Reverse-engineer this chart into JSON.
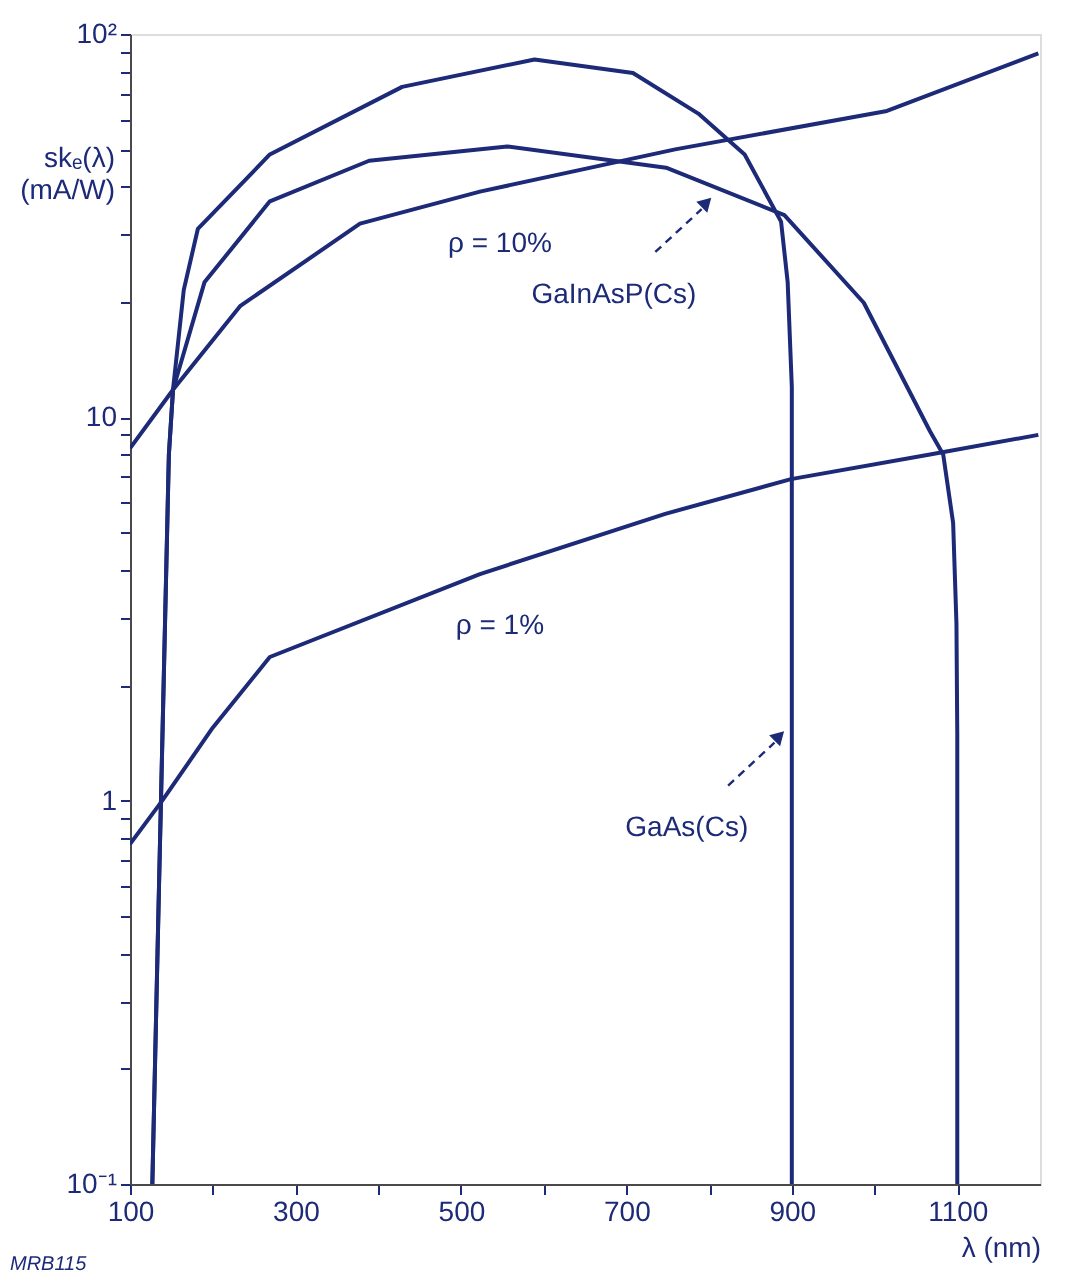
{
  "chart_data": {
    "type": "line",
    "xlabel": "λ   (nm)",
    "ylabel": "skₑ(λ)\n(mA/W)",
    "log": "y",
    "grid": false,
    "marker": "none",
    "line_style": "solid",
    "xlim": [
      100,
      1200
    ],
    "ylim": [
      0.1,
      100
    ],
    "xticks": [
      100,
      {
        "value": 200,
        "label": null
      },
      300,
      {
        "value": 400,
        "label": null
      },
      500,
      {
        "value": 600,
        "label": null
      },
      700,
      {
        "value": 800,
        "label": null
      },
      900,
      {
        "value": 1000,
        "label": null
      },
      1100
    ],
    "yticks": [
      {
        "value": 0.1,
        "label": "10⁻¹"
      },
      {
        "value": 0.2,
        "label": null
      },
      {
        "value": 0.3,
        "label": null
      },
      {
        "value": 0.4,
        "label": null
      },
      {
        "value": 0.5,
        "label": null
      },
      {
        "value": 0.6,
        "label": null
      },
      {
        "value": 0.7,
        "label": null
      },
      {
        "value": 0.8,
        "label": null
      },
      {
        "value": 0.9,
        "label": null
      },
      1,
      {
        "value": 2,
        "label": null
      },
      {
        "value": 3,
        "label": null
      },
      {
        "value": 4,
        "label": null
      },
      {
        "value": 5,
        "label": null
      },
      {
        "value": 6,
        "label": null
      },
      {
        "value": 7,
        "label": null
      },
      {
        "value": 8,
        "label": null
      },
      {
        "value": 9,
        "label": null
      },
      10,
      {
        "value": 20,
        "label": null
      },
      {
        "value": 30,
        "label": null
      },
      {
        "value": 40,
        "label": null
      },
      {
        "value": 50,
        "label": null
      },
      {
        "value": 60,
        "label": null
      },
      {
        "value": 70,
        "label": null
      },
      {
        "value": 80,
        "label": null
      },
      {
        "value": 90,
        "label": null
      },
      {
        "value": 100,
        "label": "10²"
      }
    ],
    "series": [
      {
        "name": "ρ  = 10%",
        "color": "#1c2a78",
        "x": [
          100,
          152,
          233,
          378,
          523,
          759,
          1015,
          1198
        ],
        "values": [
          8.3,
          11.8,
          19.5,
          32,
          38.8,
          50,
          63,
          89
        ]
      },
      {
        "name": "ρ  = 1%",
        "color": "#1c2a78",
        "x": [
          100,
          139,
          200,
          269,
          523,
          747,
          899,
          1067,
          1198
        ],
        "values": [
          0.77,
          1.0,
          1.55,
          2.37,
          3.9,
          5.6,
          6.9,
          8.0,
          9.0
        ]
      },
      {
        "color": "#1c2a78",
        "x": [
          127,
          135,
          147,
          152,
          165,
          182,
          269,
          429,
          589,
          708,
          787,
          843,
          887,
          895,
          900,
          900
        ],
        "values": [
          0.1,
          0.59,
          8,
          11.8,
          21.5,
          31,
          48.5,
          72.8,
          85.8,
          79.1,
          62,
          48.5,
          32.4,
          22.5,
          12,
          0.1
        ]
      },
      {
        "color": "#1c2a78",
        "x": [
          127,
          135,
          147,
          152,
          190,
          269,
          389,
          556,
          748,
          891,
          987,
          1067,
          1083,
          1095,
          1099,
          1100,
          1100
        ],
        "values": [
          0.1,
          0.59,
          8,
          11.8,
          22.5,
          36.6,
          46.7,
          50.9,
          44.8,
          33.7,
          19.9,
          9.2,
          8.0,
          5.3,
          2.9,
          1.5,
          0.1
        ]
      }
    ],
    "annotations": [
      {
        "text": "GaInAsP(Cs)",
        "x": 795,
        "y": 36
      },
      {
        "text": "GaAs(Cs)",
        "x": 883,
        "y": 1.46
      },
      "MRB115"
    ]
  }
}
